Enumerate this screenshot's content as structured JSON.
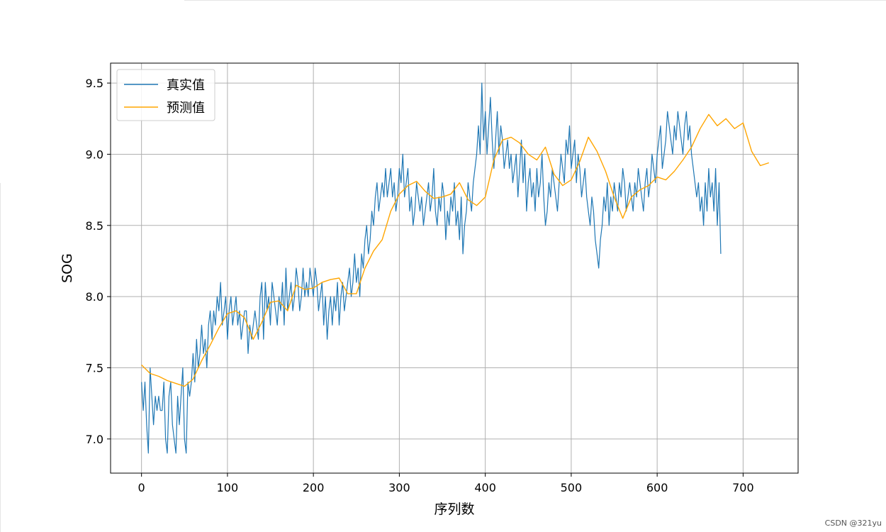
{
  "watermark": "CSDN @321yu",
  "colors": {
    "actual": "#1f77b4",
    "predicted": "#ffa500",
    "grid": "#b0b0b0",
    "axes": "#000000"
  },
  "chart_data": {
    "type": "line",
    "title": "",
    "xlabel": "序列数",
    "ylabel": "SOG",
    "xlim": [
      -36,
      764
    ],
    "ylim": [
      6.76,
      9.64
    ],
    "xticks": [
      0,
      100,
      200,
      300,
      400,
      500,
      600,
      700
    ],
    "xtick_labels": [
      "0",
      "100",
      "200",
      "300",
      "400",
      "500",
      "600",
      "700"
    ],
    "yticks": [
      7.0,
      7.5,
      8.0,
      8.5,
      9.0,
      9.5
    ],
    "ytick_labels": [
      "7.0",
      "7.5",
      "8.0",
      "8.5",
      "9.0",
      "9.5"
    ],
    "grid": true,
    "legend_position": "top-left",
    "series": [
      {
        "name": "真实值",
        "color": "#1f77b4",
        "x_start": 0,
        "x_step": 2,
        "values": [
          7.4,
          7.2,
          7.4,
          7.1,
          6.9,
          7.5,
          7.3,
          7.1,
          7.3,
          7.2,
          7.3,
          7.2,
          7.2,
          7.4,
          7.0,
          6.9,
          7.3,
          7.4,
          7.1,
          7.0,
          6.9,
          7.3,
          7.1,
          7.3,
          7.5,
          7.0,
          6.9,
          7.4,
          7.3,
          7.4,
          7.6,
          7.4,
          7.7,
          7.5,
          7.6,
          7.8,
          7.6,
          7.7,
          7.5,
          7.8,
          7.9,
          7.7,
          7.9,
          7.8,
          8.0,
          7.9,
          8.1,
          7.8,
          7.9,
          8.0,
          7.7,
          7.9,
          8.0,
          7.8,
          7.9,
          8.0,
          7.8,
          7.9,
          7.7,
          7.8,
          7.9,
          7.9,
          7.6,
          7.8,
          7.7,
          7.8,
          7.9,
          7.8,
          7.7,
          8.0,
          8.1,
          7.7,
          8.1,
          7.9,
          8.0,
          7.8,
          8.1,
          8.0,
          7.9,
          7.8,
          8.0,
          7.9,
          8.1,
          7.8,
          8.2,
          7.9,
          8.0,
          8.1,
          7.9,
          8.0,
          8.2,
          8.1,
          7.9,
          8.0,
          8.2,
          8.0,
          8.1,
          8.0,
          8.2,
          8.1,
          8.0,
          8.2,
          8.1,
          7.9,
          8.0,
          8.1,
          7.8,
          8.0,
          7.7,
          7.9,
          8.0,
          7.8,
          8.0,
          7.9,
          8.1,
          7.8,
          8.0,
          8.1,
          7.9,
          8.0,
          8.1,
          8.2,
          8.0,
          8.1,
          8.3,
          8.1,
          8.2,
          8.0,
          8.3,
          8.2,
          8.4,
          8.5,
          8.3,
          8.4,
          8.6,
          8.5,
          8.7,
          8.8,
          8.6,
          8.7,
          8.8,
          8.7,
          8.9,
          8.7,
          8.8,
          8.9,
          8.7,
          8.8,
          8.6,
          8.7,
          8.9,
          8.8,
          9.0,
          8.7,
          8.8,
          8.9,
          8.6,
          8.7,
          8.5,
          8.6,
          8.8,
          8.7,
          8.6,
          8.7,
          8.5,
          8.6,
          8.7,
          8.8,
          8.6,
          8.7,
          8.9,
          8.6,
          8.5,
          8.7,
          8.6,
          8.8,
          8.7,
          8.4,
          8.6,
          8.5,
          8.7,
          8.6,
          8.8,
          8.5,
          8.6,
          8.4,
          8.7,
          8.3,
          8.5,
          8.6,
          8.8,
          8.7,
          8.6,
          8.8,
          8.9,
          9.0,
          9.2,
          9.0,
          9.5,
          9.1,
          9.3,
          9.0,
          9.2,
          9.4,
          9.1,
          8.9,
          9.1,
          9.3,
          9.0,
          9.2,
          9.1,
          8.9,
          9.0,
          9.1,
          8.9,
          9.0,
          8.8,
          8.9,
          9.0,
          8.7,
          8.9,
          9.1,
          8.8,
          9.0,
          8.6,
          8.8,
          8.9,
          8.7,
          8.8,
          8.6,
          8.9,
          8.7,
          8.8,
          9.0,
          8.7,
          8.5,
          8.6,
          8.8,
          8.7,
          8.9,
          8.8,
          8.7,
          8.6,
          8.8,
          9.0,
          8.9,
          8.8,
          9.1,
          9.0,
          9.2,
          8.9,
          9.0,
          9.1,
          8.8,
          9.0,
          8.9,
          8.7,
          8.8,
          8.9,
          8.7,
          8.6,
          8.5,
          8.7,
          8.6,
          8.4,
          8.3,
          8.2,
          8.4,
          8.5,
          8.7,
          8.6,
          8.8,
          8.5,
          8.7,
          8.6,
          8.8,
          8.7,
          8.6,
          8.8,
          8.7,
          8.9,
          8.8,
          8.6,
          8.7,
          8.8,
          8.7,
          8.6,
          8.8,
          8.7,
          8.9,
          8.8,
          8.7,
          8.6,
          8.8,
          8.9,
          8.7,
          8.8,
          9.0,
          8.9,
          8.8,
          9.0,
          9.1,
          9.2,
          8.9,
          9.0,
          9.1,
          9.3,
          9.2,
          9.1,
          9.0,
          9.2,
          9.1,
          9.3,
          9.2,
          9.1,
          9.0,
          9.2,
          9.3,
          9.1,
          9.2,
          9.0,
          8.9,
          8.8,
          8.7,
          8.8,
          8.6,
          8.7,
          8.5,
          8.8,
          8.6,
          8.9,
          8.7,
          8.8,
          8.6,
          8.9,
          8.5,
          8.8,
          8.3
        ]
      },
      {
        "name": "预测值",
        "color": "#ffa500",
        "x": [
          0,
          10,
          20,
          30,
          40,
          50,
          60,
          70,
          80,
          90,
          100,
          110,
          120,
          130,
          140,
          150,
          160,
          170,
          180,
          190,
          200,
          210,
          220,
          230,
          240,
          250,
          260,
          270,
          280,
          290,
          300,
          310,
          320,
          330,
          340,
          350,
          360,
          370,
          380,
          390,
          400,
          410,
          420,
          430,
          440,
          450,
          460,
          470,
          480,
          490,
          500,
          510,
          520,
          530,
          540,
          550,
          560,
          570,
          580,
          590,
          600,
          610,
          620,
          630,
          640,
          650,
          660,
          670,
          680,
          690,
          700,
          710,
          720,
          730
        ],
        "values": [
          7.52,
          7.46,
          7.44,
          7.41,
          7.39,
          7.37,
          7.42,
          7.55,
          7.66,
          7.78,
          7.88,
          7.9,
          7.85,
          7.7,
          7.82,
          7.96,
          7.97,
          7.9,
          8.08,
          8.05,
          8.06,
          8.1,
          8.12,
          8.13,
          8.02,
          8.02,
          8.2,
          8.32,
          8.4,
          8.6,
          8.72,
          8.78,
          8.81,
          8.74,
          8.69,
          8.7,
          8.72,
          8.8,
          8.68,
          8.64,
          8.7,
          8.96,
          9.1,
          9.12,
          9.08,
          9.0,
          8.96,
          9.05,
          8.86,
          8.78,
          8.82,
          8.95,
          9.12,
          9.02,
          8.88,
          8.7,
          8.55,
          8.7,
          8.75,
          8.78,
          8.84,
          8.82,
          8.88,
          8.96,
          9.05,
          9.18,
          9.28,
          9.2,
          9.25,
          9.18,
          9.22,
          9.02,
          8.92,
          8.94
        ]
      }
    ]
  }
}
